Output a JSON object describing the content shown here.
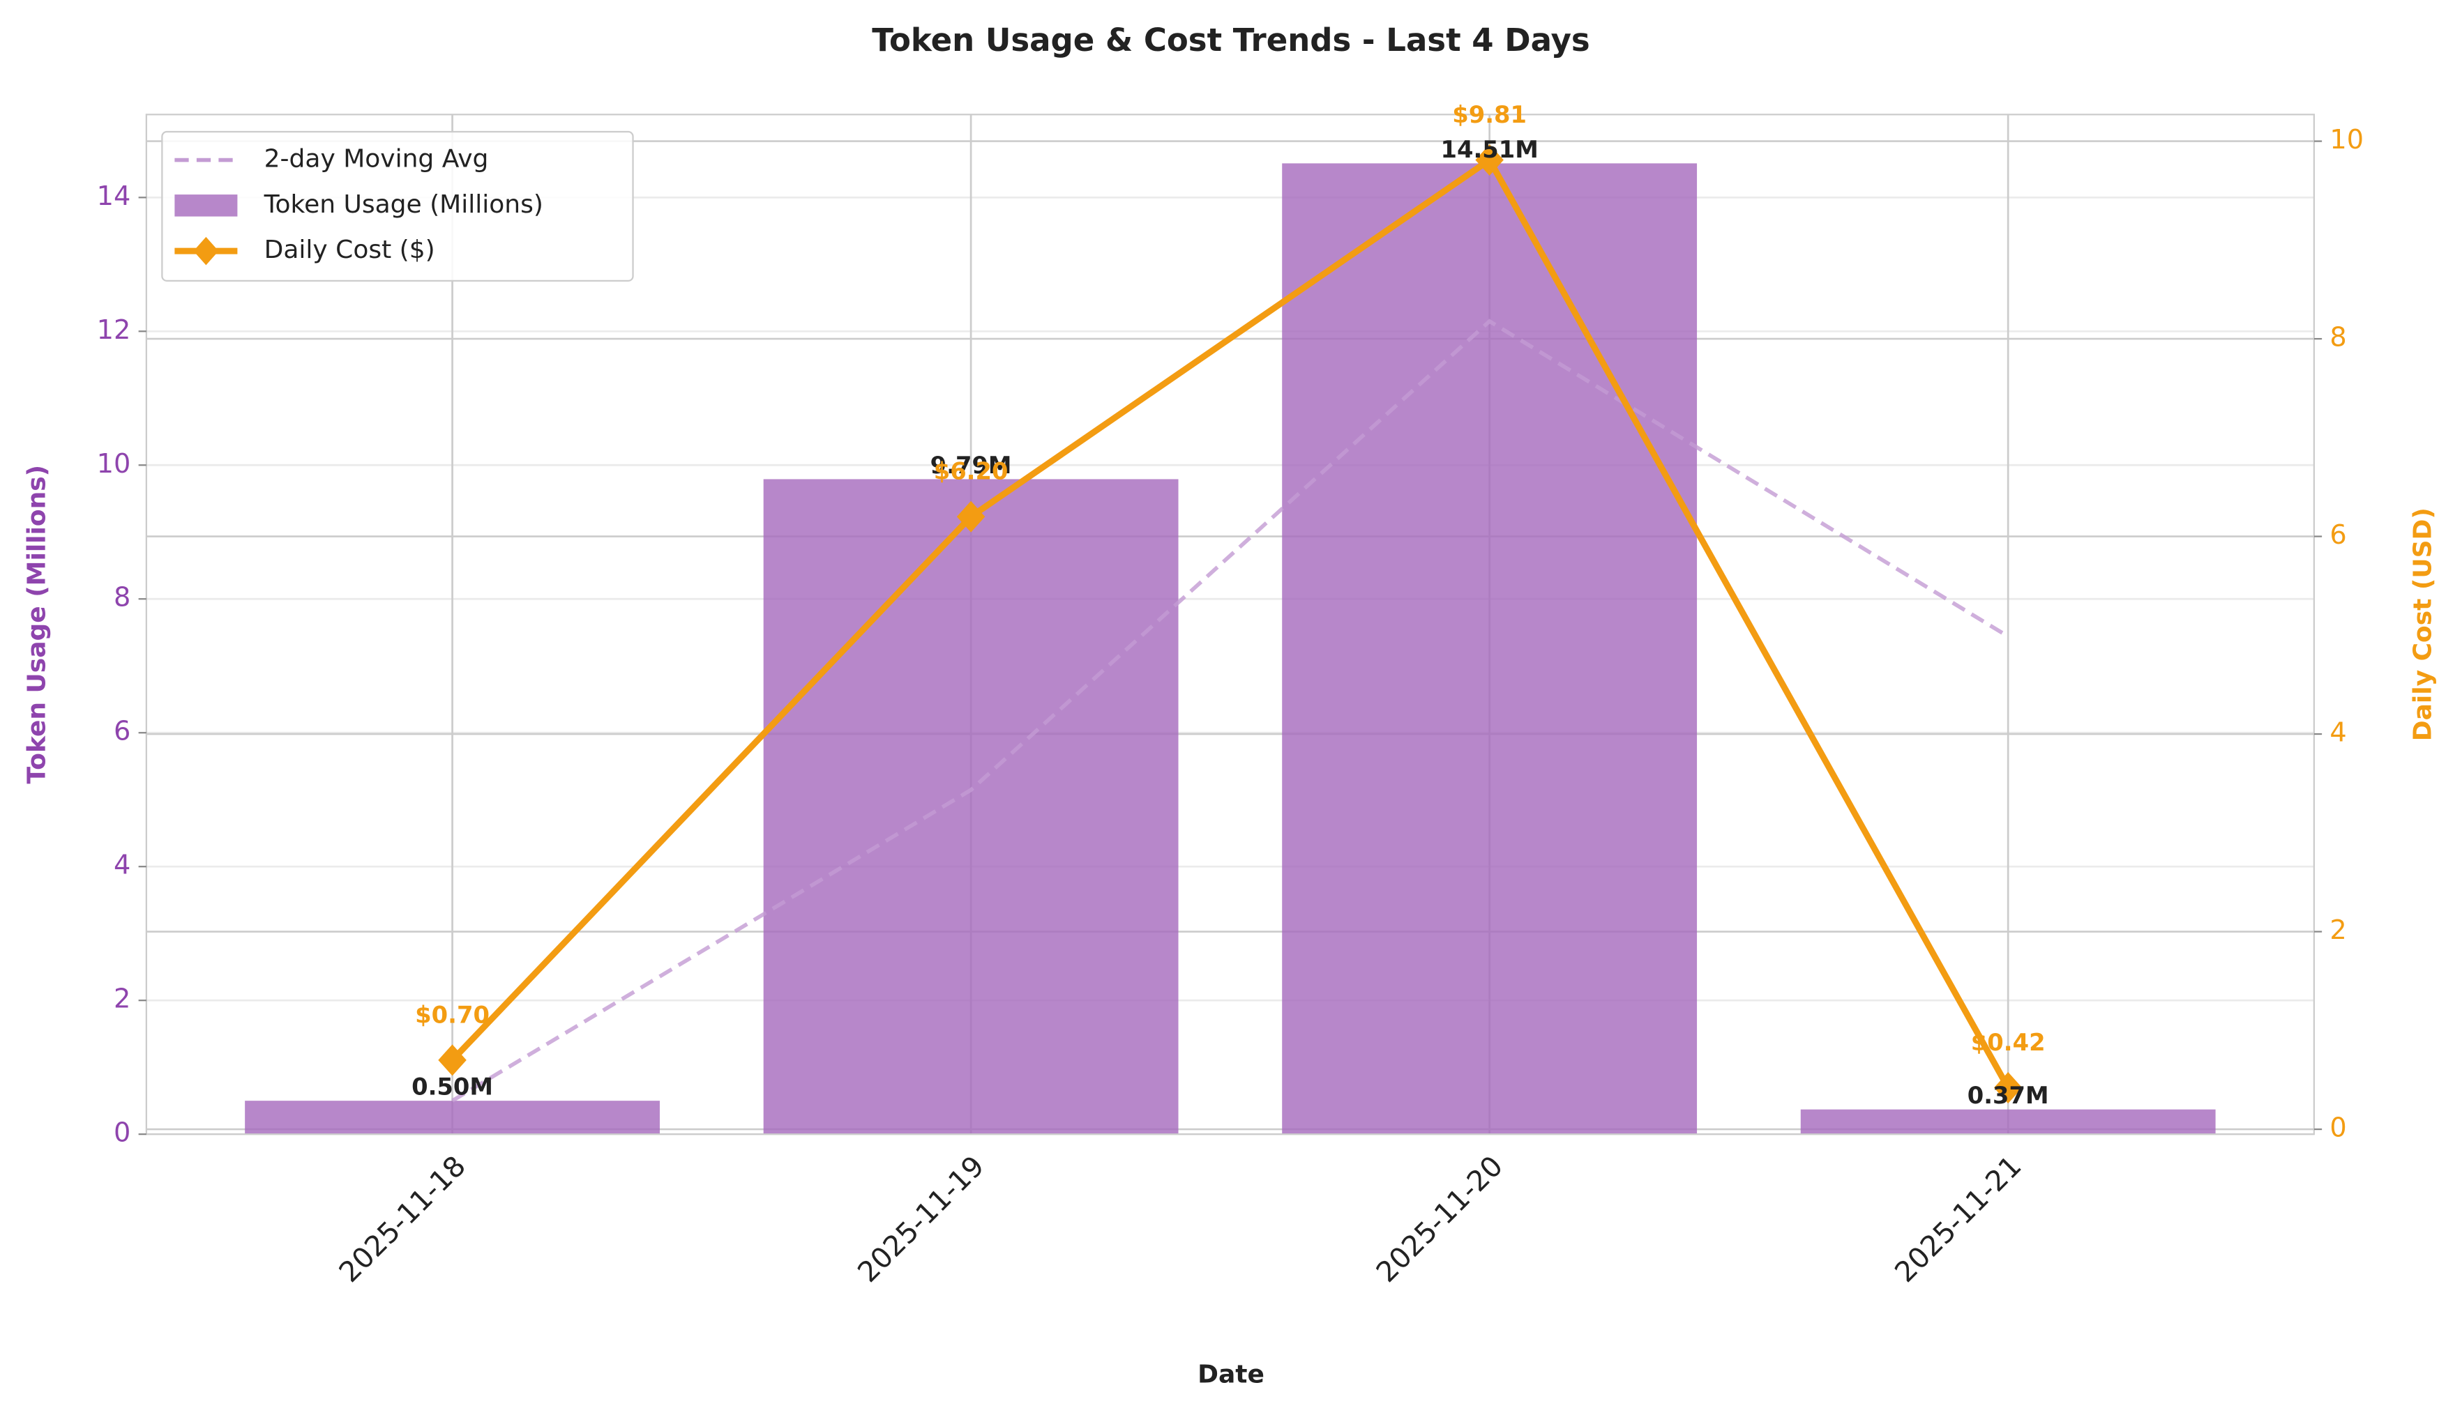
{
  "chart_data": {
    "type": "bar",
    "title": "Token Usage & Cost Trends - Last 4 Days",
    "x_label": "Date",
    "y_label": "Token Usage (Millions)",
    "y2_label": "Daily Cost (USD)",
    "categories": [
      "2025-11-18",
      "2025-11-19",
      "2025-11-20",
      "2025-11-21"
    ],
    "series": [
      {
        "name": "2-day Moving Avg",
        "type": "line",
        "dashed": true,
        "color": "#c39bd3",
        "values": [
          0.5,
          5.145,
          12.15,
          7.44
        ]
      },
      {
        "name": "Token Usage (Millions)",
        "type": "bar",
        "color": "#a569bd",
        "values": [
          0.5,
          9.79,
          14.51,
          0.37
        ],
        "value_labels": [
          "0.50M",
          "9.79M",
          "14.51M",
          "0.37M"
        ]
      },
      {
        "name": "Daily Cost ($)",
        "type": "line",
        "axis": "y2",
        "color": "#f39c12",
        "values": [
          0.7,
          6.2,
          9.81,
          0.42
        ],
        "value_labels": [
          "$0.70",
          "$6.20",
          "$9.81",
          "$0.42"
        ]
      }
    ],
    "ylim": [
      0,
      15.24
    ],
    "yticks": [
      0,
      2,
      4,
      6,
      8,
      10,
      12,
      14
    ],
    "y2lim": [
      -0.05,
      10.27
    ],
    "y2ticks": [
      0,
      2,
      4,
      6,
      8,
      10
    ],
    "y_color": "#8e44ad",
    "y2_color": "#f39c12",
    "grid": true,
    "legend": "upper-left"
  }
}
